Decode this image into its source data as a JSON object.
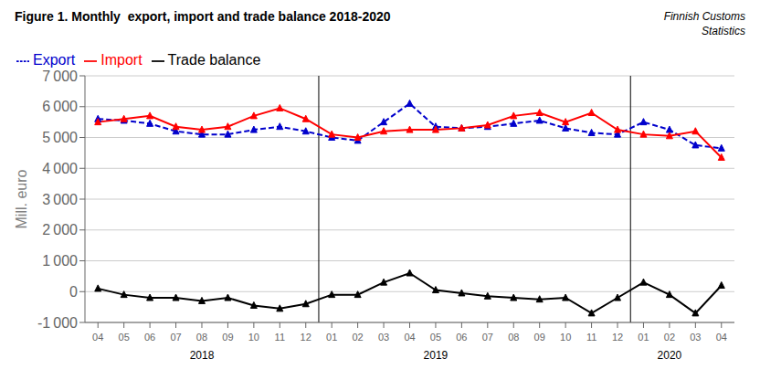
{
  "chart_data": {
    "type": "line",
    "title": "Figure 1. Monthly  export, import and trade balance 2018-2020",
    "source": "Finnish Customs\nStatistics",
    "y_label": "Mill. euro",
    "categories": [
      "04",
      "05",
      "06",
      "07",
      "08",
      "09",
      "10",
      "11",
      "12",
      "01",
      "02",
      "03",
      "04",
      "05",
      "06",
      "07",
      "08",
      "09",
      "10",
      "11",
      "12",
      "01",
      "02",
      "03",
      "04"
    ],
    "series": [
      {
        "name": "Export",
        "color": "#0000CC",
        "line_style": "dashed",
        "marker": "triangle",
        "values": [
          5600,
          5550,
          5450,
          5200,
          5100,
          5100,
          5250,
          5350,
          5200,
          5000,
          4900,
          5500,
          6100,
          5350,
          5300,
          5350,
          5450,
          5550,
          5300,
          5150,
          5100,
          5500,
          5250,
          4750,
          4650
        ]
      },
      {
        "name": "Import",
        "color": "#FF0000",
        "line_style": "solid",
        "marker": "triangle",
        "values": [
          5500,
          5600,
          5700,
          5350,
          5250,
          5350,
          5700,
          5950,
          5600,
          5100,
          5000,
          5200,
          5250,
          5250,
          5300,
          5400,
          5700,
          5800,
          5500,
          5800,
          5250,
          5100,
          5050,
          5200,
          4350
        ]
      },
      {
        "name": "Trade balance",
        "color": "#000000",
        "line_style": "solid",
        "marker": "triangle",
        "values": [
          100,
          -100,
          -200,
          -200,
          -300,
          -200,
          -450,
          -550,
          -400,
          -100,
          -100,
          300,
          600,
          50,
          -50,
          -150,
          -200,
          -250,
          -200,
          -700,
          -200,
          300,
          -100,
          -700,
          200
        ]
      }
    ],
    "ylim": [
      -1000,
      7000
    ],
    "yticks": [
      {
        "value": -1000,
        "label": "-1 000"
      },
      0,
      {
        "value": 1000,
        "label": "1 000"
      },
      {
        "value": 2000,
        "label": "2 000"
      },
      {
        "value": 3000,
        "label": "3 000"
      },
      {
        "value": 4000,
        "label": "4 000"
      },
      {
        "value": 5000,
        "label": "5 000"
      },
      {
        "value": 6000,
        "label": "6 000"
      },
      {
        "value": 7000,
        "label": "7 000"
      }
    ],
    "grid": true,
    "legend": "upper left",
    "annotations": [
      {
        "text": "2018",
        "x": 4
      },
      {
        "text": "2019",
        "x": 13
      },
      {
        "text": "2020",
        "x": 22
      }
    ],
    "separators": [
      8.5,
      20.5
    ]
  }
}
